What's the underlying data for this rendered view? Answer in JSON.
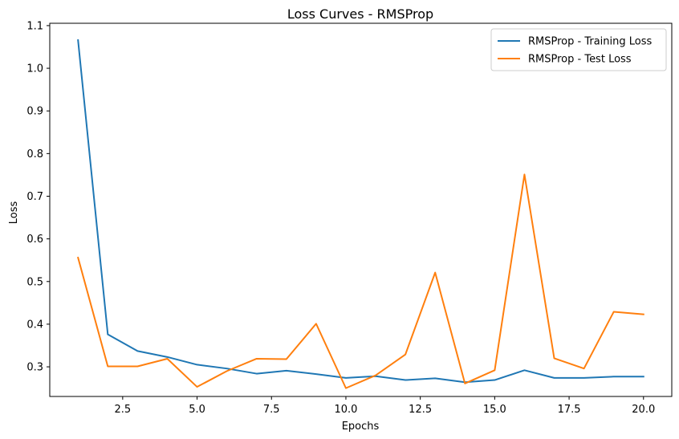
{
  "chart_data": {
    "type": "line",
    "title": "Loss Curves - RMSProp",
    "xlabel": "Epochs",
    "ylabel": "Loss",
    "xlim": [
      0.05,
      20.95
    ],
    "ylim": [
      0.2305,
      1.1055
    ],
    "xticks": [
      2.5,
      5.0,
      7.5,
      10.0,
      12.5,
      15.0,
      17.5,
      20.0
    ],
    "xtick_labels": [
      "2.5",
      "5.0",
      "7.5",
      "10.0",
      "12.5",
      "15.0",
      "17.5",
      "20.0"
    ],
    "yticks": [
      0.3,
      0.4,
      0.5,
      0.6,
      0.7,
      0.8,
      0.9,
      1.0,
      1.1
    ],
    "ytick_labels": [
      "0.3",
      "0.4",
      "0.5",
      "0.6",
      "0.7",
      "0.8",
      "0.9",
      "1.0",
      "1.1"
    ],
    "grid": false,
    "legend_position": "top-right",
    "x": [
      1,
      2,
      3,
      4,
      5,
      6,
      7,
      8,
      9,
      10,
      11,
      12,
      13,
      14,
      15,
      16,
      17,
      18,
      19,
      20
    ],
    "series": [
      {
        "name": "RMSProp - Training Loss",
        "color": "#1f77b4",
        "values": [
          1.066,
          0.376,
          0.337,
          0.323,
          0.305,
          0.296,
          0.284,
          0.291,
          0.283,
          0.274,
          0.278,
          0.269,
          0.273,
          0.264,
          0.269,
          0.292,
          0.274,
          0.274,
          0.277,
          0.277
        ]
      },
      {
        "name": "RMSProp - Test Loss",
        "color": "#ff7f0e",
        "values": [
          0.556,
          0.301,
          0.301,
          0.319,
          0.253,
          0.29,
          0.319,
          0.318,
          0.401,
          0.25,
          0.28,
          0.329,
          0.521,
          0.261,
          0.292,
          0.751,
          0.32,
          0.296,
          0.429,
          0.423
        ]
      }
    ]
  }
}
